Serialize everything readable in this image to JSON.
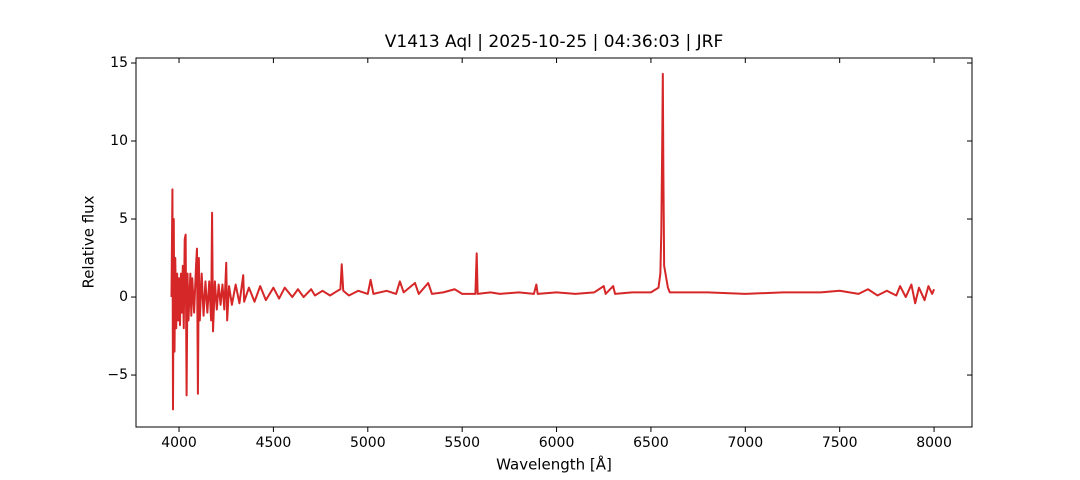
{
  "chart_data": {
    "type": "line",
    "title": "V1413 Aql | 2025-10-25 | 04:36:03 | JRF",
    "x_label": "Wavelength [Å]",
    "y_label": "Relative flux",
    "xlim": [
      3772,
      8201
    ],
    "ylim": [
      -8.33,
      15.32
    ],
    "xticks": [
      4000,
      4500,
      5000,
      5500,
      6000,
      6500,
      7000,
      7500,
      8000
    ],
    "yticks": [
      {
        "value": -5,
        "label": "−5"
      },
      0,
      5,
      10,
      15
    ],
    "grid": false,
    "series": [
      {
        "color": "#d62728",
        "x": [
          3960,
          3965,
          3968,
          3972,
          3976,
          3980,
          3985,
          3990,
          3995,
          4000,
          4005,
          4010,
          4015,
          4020,
          4025,
          4030,
          4035,
          4040,
          4045,
          4050,
          4060,
          4065,
          4070,
          4080,
          4090,
          4095,
          4100,
          4105,
          4110,
          4120,
          4130,
          4140,
          4150,
          4160,
          4170,
          4175,
          4180,
          4190,
          4200,
          4210,
          4220,
          4230,
          4240,
          4250,
          4255,
          4265,
          4280,
          4300,
          4320,
          4340,
          4345,
          4370,
          4400,
          4430,
          4460,
          4500,
          4530,
          4560,
          4600,
          4630,
          4660,
          4700,
          4720,
          4760,
          4800,
          4840,
          4855,
          4862,
          4870,
          4900,
          4950,
          5000,
          5015,
          5030,
          5100,
          5150,
          5170,
          5190,
          5250,
          5270,
          5320,
          5340,
          5400,
          5460,
          5500,
          5570,
          5577,
          5582,
          5650,
          5700,
          5800,
          5880,
          5893,
          5900,
          6000,
          6100,
          6200,
          6250,
          6260,
          6300,
          6310,
          6400,
          6500,
          6540,
          6550,
          6555,
          6560,
          6563,
          6566,
          6570,
          6580,
          6590,
          6600,
          6700,
          6800,
          7000,
          7200,
          7400,
          7500,
          7600,
          7650,
          7700,
          7750,
          7800,
          7820,
          7850,
          7880,
          7900,
          7920,
          7950,
          7970,
          7990,
          8000
        ],
        "values": [
          0,
          6.9,
          -7.2,
          5,
          -3.5,
          2.5,
          -2,
          1.5,
          -1.5,
          1.2,
          -1.8,
          1.5,
          -1,
          2,
          -2,
          3.7,
          4.0,
          -6.3,
          1.5,
          -1.5,
          1.5,
          -1.2,
          1.2,
          -1,
          2,
          3.1,
          -6.2,
          2.5,
          -1.5,
          1.5,
          -1.2,
          1,
          -1,
          1,
          -1.5,
          5.4,
          -2.2,
          1,
          -0.8,
          0.8,
          -0.5,
          0.8,
          -0.8,
          2.2,
          -1.5,
          0.7,
          -0.5,
          0.8,
          -0.4,
          1.4,
          -0.3,
          0.6,
          -0.3,
          0.7,
          -0.2,
          0.6,
          -0.1,
          0.6,
          0,
          0.5,
          0,
          0.5,
          0.1,
          0.4,
          0.1,
          0.4,
          0.5,
          2.1,
          0.4,
          0.1,
          0.4,
          0.2,
          1.1,
          0.2,
          0.4,
          0.2,
          1.0,
          0.3,
          0.9,
          0.2,
          0.9,
          0.2,
          0.3,
          0.5,
          0.2,
          0.2,
          2.8,
          0.2,
          0.3,
          0.2,
          0.3,
          0.2,
          0.8,
          0.2,
          0.3,
          0.2,
          0.3,
          0.7,
          0.2,
          0.7,
          0.2,
          0.3,
          0.3,
          0.6,
          1.5,
          4.2,
          10,
          14.3,
          8,
          2,
          1.3,
          0.6,
          0.3,
          0.3,
          0.3,
          0.2,
          0.3,
          0.3,
          0.4,
          0.2,
          0.5,
          0.1,
          0.4,
          0.1,
          0.7,
          0.0,
          0.8,
          -0.4,
          0.6,
          -0.2,
          0.7,
          0.2,
          0.5
        ]
      }
    ]
  }
}
